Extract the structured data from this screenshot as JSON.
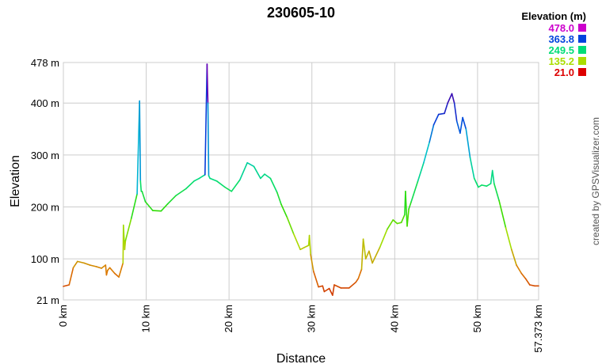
{
  "chart_data": {
    "type": "line",
    "title": "230605-10",
    "xlabel": "Distance",
    "ylabel": "Elevation",
    "xlim": [
      0,
      57.373
    ],
    "ylim": [
      21,
      478
    ],
    "x_unit": "km",
    "y_unit": "m",
    "x_ticks": [
      {
        "value": 0,
        "label": "0 km"
      },
      {
        "value": 10,
        "label": "10 km"
      },
      {
        "value": 20,
        "label": "20 km"
      },
      {
        "value": 30,
        "label": "30 km"
      },
      {
        "value": 40,
        "label": "40 km"
      },
      {
        "value": 50,
        "label": "50 km"
      },
      {
        "value": 57.373,
        "label": "57.373 km"
      }
    ],
    "y_ticks": [
      {
        "value": 21,
        "label": "21 m"
      },
      {
        "value": 100,
        "label": "100 m"
      },
      {
        "value": 200,
        "label": "200 m"
      },
      {
        "value": 300,
        "label": "300 m"
      },
      {
        "value": 400,
        "label": "400 m"
      },
      {
        "value": 478,
        "label": "478 m"
      }
    ],
    "grid": true,
    "legend": {
      "title": "Elevation (m)",
      "position": "top-right",
      "entries": [
        {
          "label": "478.0",
          "color": "#cc00cc"
        },
        {
          "label": "363.8",
          "color": "#0044dd"
        },
        {
          "label": "249.5",
          "color": "#00dd77"
        },
        {
          "label": "135.2",
          "color": "#aadd00"
        },
        {
          "label": "21.0",
          "color": "#dd0000"
        }
      ]
    },
    "series": [
      {
        "x": [
          0,
          0.7,
          1.2,
          1.7,
          2.5,
          3.2,
          4.0,
          4.6,
          5.1,
          5.2,
          5.35,
          5.6,
          6.2,
          6.7,
          7.2,
          7.25,
          7.4,
          7.5,
          8.2,
          8.9,
          9.2,
          9.3,
          9.4,
          9.5,
          9.9,
          10.8,
          11.8,
          12.6,
          13.6,
          14.8,
          15.8,
          16.4,
          17.1,
          17.35,
          17.45,
          17.55,
          17.7,
          18.5,
          19.5,
          20.3,
          21.3,
          22.2,
          23.0,
          23.8,
          24.3,
          25.0,
          25.8,
          26.3,
          27.0,
          27.8,
          28.6,
          29.1,
          29.6,
          29.7,
          29.85,
          30.2,
          30.8,
          31.3,
          31.5,
          32.1,
          32.5,
          32.7,
          33.5,
          34.5,
          35.3,
          35.6,
          36.0,
          36.2,
          36.5,
          36.9,
          37.3,
          38.2,
          39.1,
          39.8,
          40.3,
          40.8,
          41.2,
          41.3,
          41.5,
          41.7,
          42.0,
          42.8,
          43.5,
          44.2,
          44.7,
          45.3,
          46.0,
          46.4,
          46.9,
          47.2,
          47.5,
          47.9,
          48.2,
          48.6,
          49.1,
          49.6,
          50.1,
          50.5,
          51.1,
          51.6,
          51.8,
          52.0,
          52.6,
          53.4,
          54.1,
          54.7,
          55.3,
          55.8,
          56.3,
          56.9,
          57.373
        ],
        "y": [
          47,
          50,
          83,
          95,
          92,
          88,
          85,
          82,
          88,
          69,
          78,
          83,
          72,
          65,
          92,
          165,
          118,
          135,
          178,
          225,
          404,
          250,
          230,
          230,
          210,
          193,
          192,
          206,
          222,
          235,
          250,
          255,
          262,
          475,
          400,
          260,
          255,
          250,
          238,
          230,
          252,
          285,
          278,
          255,
          263,
          255,
          228,
          205,
          180,
          148,
          118,
          122,
          126,
          145,
          108,
          76,
          46,
          48,
          37,
          43,
          30,
          50,
          44,
          44,
          55,
          62,
          80,
          138,
          100,
          115,
          92,
          122,
          157,
          175,
          168,
          170,
          185,
          230,
          163,
          196,
          210,
          250,
          285,
          325,
          358,
          378,
          380,
          400,
          418,
          400,
          365,
          342,
          372,
          350,
          295,
          255,
          238,
          242,
          240,
          245,
          270,
          245,
          212,
          160,
          118,
          88,
          72,
          62,
          50,
          48,
          48
        ]
      }
    ]
  },
  "credit": "created by GPSVisualizer.com"
}
